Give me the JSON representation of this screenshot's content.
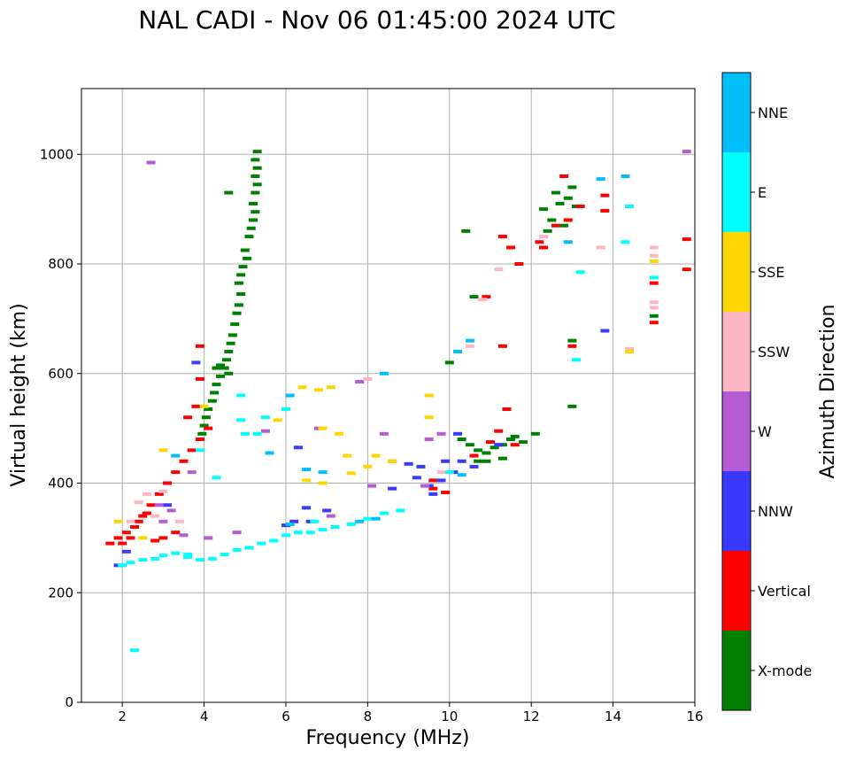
{
  "chart_data": {
    "type": "scatter",
    "title": "NAL CADI - Nov 06 01:45:00 2024 UTC",
    "xlabel": "Frequency (MHz)",
    "ylabel": "Virtual height (km)",
    "xlim": [
      1,
      16
    ],
    "ylim": [
      0,
      1120
    ],
    "xticks": [
      2,
      4,
      6,
      8,
      10,
      12,
      14,
      16
    ],
    "yticks": [
      0,
      200,
      400,
      600,
      800,
      1000
    ],
    "grid": true,
    "colorbar": {
      "title": "Azimuth Direction",
      "categories": [
        {
          "name": "X-mode",
          "color": "#008000"
        },
        {
          "name": "Vertical",
          "color": "#ff0000"
        },
        {
          "name": "NNW",
          "color": "#3a3aff"
        },
        {
          "name": "W",
          "color": "#b65ad6"
        },
        {
          "name": "SSW",
          "color": "#ffb6c1"
        },
        {
          "name": "SSE",
          "color": "#ffd700"
        },
        {
          "name": "E",
          "color": "#00ffff"
        },
        {
          "name": "NNE",
          "color": "#00bfff"
        }
      ]
    },
    "series": [
      {
        "name": "X-mode",
        "points": [
          [
            5.3,
            1005
          ],
          [
            5.25,
            990
          ],
          [
            5.3,
            975
          ],
          [
            5.25,
            960
          ],
          [
            5.3,
            945
          ],
          [
            5.25,
            930
          ],
          [
            5.2,
            910
          ],
          [
            5.25,
            895
          ],
          [
            5.2,
            880
          ],
          [
            5.15,
            865
          ],
          [
            5.1,
            850
          ],
          [
            5.0,
            825
          ],
          [
            5.05,
            810
          ],
          [
            4.95,
            795
          ],
          [
            4.9,
            780
          ],
          [
            4.85,
            765
          ],
          [
            4.9,
            745
          ],
          [
            4.85,
            725
          ],
          [
            4.8,
            710
          ],
          [
            4.75,
            690
          ],
          [
            4.7,
            670
          ],
          [
            4.65,
            655
          ],
          [
            4.6,
            640
          ],
          [
            4.55,
            625
          ],
          [
            4.5,
            610
          ],
          [
            4.4,
            595
          ],
          [
            4.3,
            580
          ],
          [
            4.25,
            565
          ],
          [
            4.2,
            550
          ],
          [
            4.1,
            535
          ],
          [
            4.05,
            520
          ],
          [
            4.0,
            505
          ],
          [
            3.95,
            490
          ],
          [
            4.3,
            610
          ],
          [
            4.6,
            600
          ],
          [
            10.3,
            480
          ],
          [
            10.5,
            470
          ],
          [
            10.7,
            460
          ],
          [
            10.9,
            455
          ],
          [
            11.1,
            465
          ],
          [
            11.3,
            470
          ],
          [
            11.5,
            480
          ],
          [
            11.8,
            475
          ],
          [
            12.1,
            490
          ],
          [
            10.9,
            440
          ],
          [
            11.3,
            445
          ],
          [
            10.7,
            440
          ],
          [
            11.6,
            485
          ],
          [
            12.3,
            900
          ],
          [
            12.5,
            880
          ],
          [
            12.7,
            910
          ],
          [
            12.9,
            920
          ],
          [
            13.1,
            905
          ],
          [
            12.4,
            860
          ],
          [
            12.8,
            870
          ],
          [
            13.0,
            940
          ],
          [
            13.0,
            660
          ],
          [
            13.0,
            540
          ],
          [
            10.0,
            620
          ],
          [
            10.4,
            860
          ],
          [
            10.6,
            740
          ],
          [
            12.6,
            930
          ],
          [
            15.0,
            705
          ],
          [
            4.6,
            930
          ],
          [
            4.4,
            615
          ]
        ]
      },
      {
        "name": "Vertical",
        "points": [
          [
            1.7,
            290
          ],
          [
            1.9,
            300
          ],
          [
            2.1,
            310
          ],
          [
            2.3,
            320
          ],
          [
            2.5,
            340
          ],
          [
            2.7,
            360
          ],
          [
            2.9,
            380
          ],
          [
            3.1,
            400
          ],
          [
            3.3,
            420
          ],
          [
            3.5,
            440
          ],
          [
            3.7,
            460
          ],
          [
            3.9,
            480
          ],
          [
            4.1,
            500
          ],
          [
            3.8,
            540
          ],
          [
            3.9,
            590
          ],
          [
            3.9,
            650
          ],
          [
            2.0,
            290
          ],
          [
            2.2,
            300
          ],
          [
            2.4,
            330
          ],
          [
            2.6,
            345
          ],
          [
            2.8,
            295
          ],
          [
            3.0,
            300
          ],
          [
            3.3,
            310
          ],
          [
            3.6,
            520
          ],
          [
            11.0,
            475
          ],
          [
            11.2,
            495
          ],
          [
            11.4,
            535
          ],
          [
            10.6,
            450
          ],
          [
            11.6,
            470
          ],
          [
            9.6,
            390
          ],
          [
            9.6,
            405
          ],
          [
            9.9,
            383
          ],
          [
            11.7,
            800
          ],
          [
            11.3,
            850
          ],
          [
            11.5,
            830
          ],
          [
            12.2,
            840
          ],
          [
            12.6,
            870
          ],
          [
            12.9,
            880
          ],
          [
            13.2,
            905
          ],
          [
            13.8,
            925
          ],
          [
            12.8,
            960
          ],
          [
            15.0,
            765
          ],
          [
            15.0,
            693
          ],
          [
            15.8,
            845
          ],
          [
            15.8,
            790
          ],
          [
            13.0,
            650
          ],
          [
            10.9,
            740
          ],
          [
            11.3,
            650
          ],
          [
            12.3,
            830
          ],
          [
            13.8,
            897
          ]
        ]
      },
      {
        "name": "NNW",
        "points": [
          [
            9.6,
            380
          ],
          [
            9.5,
            395
          ],
          [
            9.2,
            410
          ],
          [
            9.0,
            435
          ],
          [
            9.3,
            430
          ],
          [
            9.8,
            405
          ],
          [
            10.1,
            420
          ],
          [
            10.3,
            440
          ],
          [
            10.6,
            430
          ],
          [
            8.6,
            390
          ],
          [
            6.2,
            330
          ],
          [
            6.6,
            330
          ],
          [
            7.0,
            350
          ],
          [
            6.3,
            465
          ],
          [
            13.8,
            678
          ],
          [
            6.0,
            323
          ],
          [
            9.9,
            440
          ],
          [
            6.5,
            355
          ],
          [
            1.9,
            250
          ],
          [
            2.1,
            275
          ],
          [
            3.1,
            360
          ],
          [
            3.8,
            620
          ],
          [
            10.2,
            490
          ],
          [
            11.2,
            470
          ]
        ]
      },
      {
        "name": "W",
        "points": [
          [
            2.7,
            985
          ],
          [
            2.9,
            360
          ],
          [
            3.0,
            330
          ],
          [
            3.2,
            350
          ],
          [
            3.5,
            305
          ],
          [
            3.7,
            420
          ],
          [
            4.1,
            300
          ],
          [
            7.1,
            340
          ],
          [
            8.4,
            490
          ],
          [
            9.5,
            480
          ],
          [
            9.8,
            490
          ],
          [
            8.6,
            440
          ],
          [
            7.8,
            585
          ],
          [
            6.8,
            500
          ],
          [
            5.5,
            495
          ],
          [
            4.8,
            310
          ],
          [
            15.8,
            1005
          ],
          [
            9.4,
            395
          ],
          [
            8.1,
            395
          ]
        ]
      },
      {
        "name": "SSW",
        "points": [
          [
            2.4,
            365
          ],
          [
            2.6,
            380
          ],
          [
            2.8,
            340
          ],
          [
            3.0,
            385
          ],
          [
            2.2,
            330
          ],
          [
            3.4,
            330
          ],
          [
            14.4,
            645
          ],
          [
            15.0,
            830
          ],
          [
            15.0,
            720
          ],
          [
            15.0,
            730
          ],
          [
            10.8,
            735
          ],
          [
            10.5,
            650
          ],
          [
            9.8,
            420
          ],
          [
            13.7,
            830
          ],
          [
            11.2,
            790
          ],
          [
            12.3,
            850
          ],
          [
            8.0,
            590
          ],
          [
            14.4,
            905
          ],
          [
            15.0,
            815
          ]
        ]
      },
      {
        "name": "SSE",
        "points": [
          [
            6.4,
            575
          ],
          [
            6.8,
            570
          ],
          [
            7.1,
            575
          ],
          [
            6.9,
            500
          ],
          [
            7.3,
            490
          ],
          [
            7.5,
            450
          ],
          [
            8.0,
            430
          ],
          [
            8.6,
            440
          ],
          [
            8.2,
            450
          ],
          [
            9.5,
            560
          ],
          [
            9.5,
            520
          ],
          [
            5.8,
            515
          ],
          [
            6.9,
            400
          ],
          [
            7.6,
            418
          ],
          [
            14.4,
            640
          ],
          [
            15.0,
            805
          ],
          [
            14.4,
            905
          ],
          [
            4.0,
            540
          ],
          [
            3.0,
            460
          ],
          [
            2.5,
            300
          ],
          [
            1.9,
            330
          ],
          [
            6.5,
            405
          ]
        ]
      },
      {
        "name": "E",
        "points": [
          [
            2.0,
            250
          ],
          [
            2.2,
            255
          ],
          [
            2.5,
            260
          ],
          [
            2.8,
            262
          ],
          [
            3.0,
            268
          ],
          [
            3.3,
            272
          ],
          [
            3.6,
            265
          ],
          [
            3.9,
            260
          ],
          [
            4.2,
            262
          ],
          [
            4.5,
            270
          ],
          [
            4.8,
            278
          ],
          [
            5.1,
            282
          ],
          [
            5.4,
            290
          ],
          [
            5.7,
            295
          ],
          [
            6.0,
            305
          ],
          [
            6.3,
            310
          ],
          [
            6.6,
            310
          ],
          [
            6.9,
            315
          ],
          [
            7.2,
            320
          ],
          [
            7.6,
            325
          ],
          [
            8.0,
            335
          ],
          [
            8.4,
            345
          ],
          [
            8.8,
            350
          ],
          [
            2.3,
            95
          ],
          [
            5.0,
            490
          ],
          [
            5.3,
            490
          ],
          [
            4.3,
            410
          ],
          [
            4.9,
            515
          ],
          [
            3.9,
            460
          ],
          [
            6.0,
            535
          ],
          [
            13.1,
            625
          ],
          [
            13.2,
            785
          ],
          [
            15.0,
            775
          ],
          [
            14.3,
            840
          ],
          [
            14.4,
            905
          ],
          [
            10.0,
            420
          ],
          [
            6.7,
            330
          ],
          [
            3.6,
            270
          ],
          [
            4.9,
            560
          ],
          [
            5.5,
            520
          ]
        ]
      },
      {
        "name": "NNE",
        "points": [
          [
            6.1,
            560
          ],
          [
            6.5,
            425
          ],
          [
            6.9,
            420
          ],
          [
            7.8,
            330
          ],
          [
            8.4,
            600
          ],
          [
            8.2,
            335
          ],
          [
            14.3,
            960
          ],
          [
            13.7,
            955
          ],
          [
            10.2,
            640
          ],
          [
            10.5,
            660
          ],
          [
            10.3,
            415
          ],
          [
            12.9,
            840
          ],
          [
            5.6,
            455
          ],
          [
            3.3,
            450
          ],
          [
            6.1,
            325
          ]
        ]
      }
    ]
  }
}
